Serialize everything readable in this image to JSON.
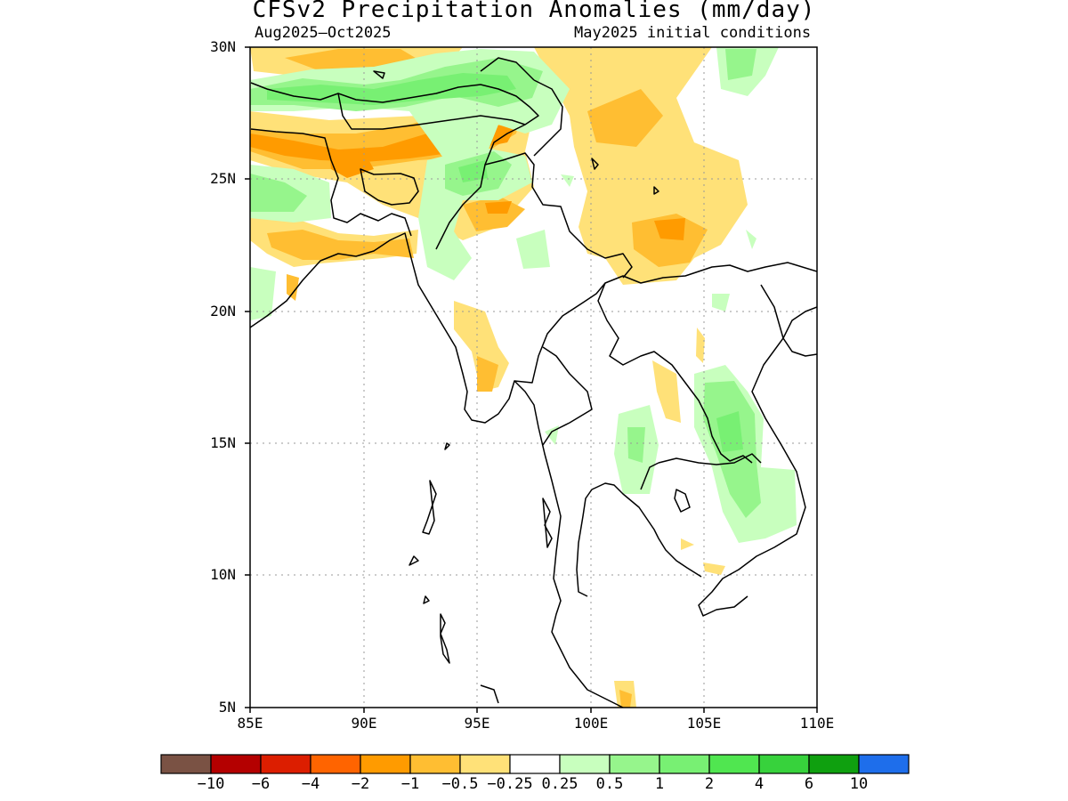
{
  "title": "CFSv2 Precipitation Anomalies (mm/day)",
  "period": "Aug2025–Oct2025",
  "initial_conditions": "May2025 initial conditions",
  "axes": {
    "lat_labels": [
      "30N",
      "25N",
      "20N",
      "15N",
      "10N",
      "5N"
    ],
    "lon_labels": [
      "85E",
      "90E",
      "95E",
      "100E",
      "105E",
      "110E"
    ]
  },
  "colorbar": {
    "colors": [
      "#7a5244",
      "#b40000",
      "#dc1e00",
      "#ff6400",
      "#ff9b00",
      "#ffbe32",
      "#ffe178",
      "#ffffff",
      "#c8ffbe",
      "#96f58c",
      "#78f073",
      "#50e650",
      "#37d23c",
      "#0fa00f",
      "#1e6eeb"
    ],
    "labels": [
      "−10",
      "−6",
      "−4",
      "−2",
      "−1",
      "−0.5",
      "−0.25",
      "0.25",
      "0.5",
      "1",
      "2",
      "4",
      "6",
      "10"
    ]
  }
}
